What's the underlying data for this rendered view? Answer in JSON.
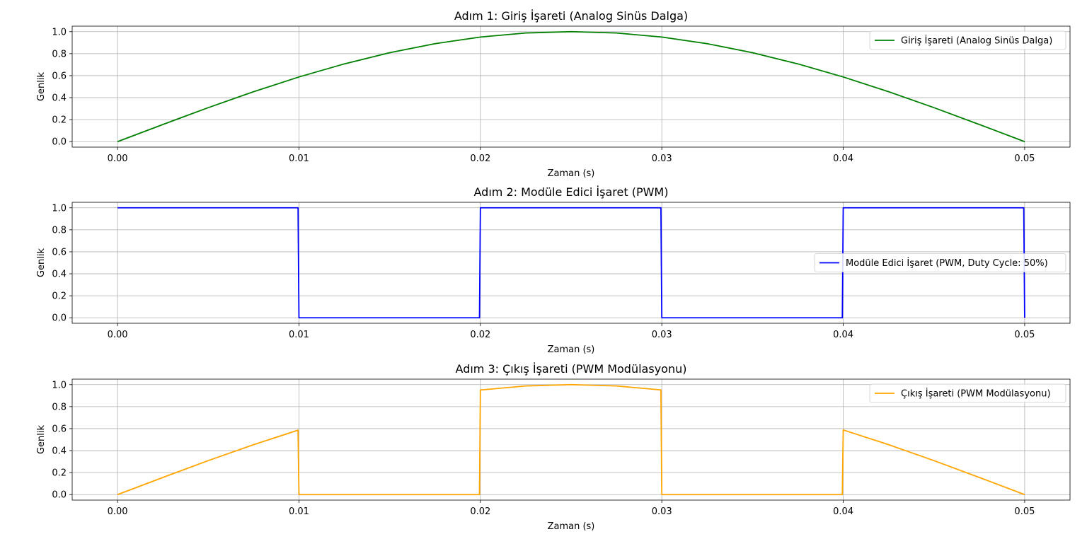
{
  "chart_data": [
    {
      "type": "line",
      "title": "Adım 1: Giriş İşareti (Analog Sinüs Dalga)",
      "xlabel": "Zaman (s)",
      "ylabel": "Genlik",
      "xlim": [
        0,
        0.05
      ],
      "ylim": [
        0,
        1
      ],
      "xticks": [
        "0.00",
        "0.01",
        "0.02",
        "0.03",
        "0.04",
        "0.05"
      ],
      "yticks": [
        "0.0",
        "0.2",
        "0.4",
        "0.6",
        "0.8",
        "1.0"
      ],
      "grid": true,
      "legend_position": "top-right",
      "series": [
        {
          "name": "Giriş İşareti (Analog Sinüs Dalga)",
          "color": "#008000",
          "x": [
            0,
            0.0025,
            0.005,
            0.0075,
            0.01,
            0.0125,
            0.015,
            0.0175,
            0.02,
            0.0225,
            0.025,
            0.0275,
            0.03,
            0.0325,
            0.035,
            0.0375,
            0.04,
            0.0425,
            0.045,
            0.0475,
            0.05
          ],
          "y": [
            0,
            0.156,
            0.309,
            0.454,
            0.588,
            0.707,
            0.809,
            0.891,
            0.951,
            0.988,
            1.0,
            0.988,
            0.951,
            0.891,
            0.809,
            0.707,
            0.588,
            0.454,
            0.309,
            0.156,
            0
          ]
        }
      ]
    },
    {
      "type": "line",
      "title": "Adım 2: Modüle Edici İşaret (PWM)",
      "xlabel": "Zaman (s)",
      "ylabel": "Genlik",
      "xlim": [
        0,
        0.05
      ],
      "ylim": [
        0,
        1
      ],
      "xticks": [
        "0.00",
        "0.01",
        "0.02",
        "0.03",
        "0.04",
        "0.05"
      ],
      "yticks": [
        "0.0",
        "0.2",
        "0.4",
        "0.6",
        "0.8",
        "1.0"
      ],
      "grid": true,
      "legend_position": "center-right",
      "series": [
        {
          "name": "Modüle Edici İşaret (PWM, Duty Cycle: 50%)",
          "color": "#0000ff",
          "x": [
            0,
            0.00995,
            0.01,
            0.01995,
            0.02,
            0.02995,
            0.03,
            0.03995,
            0.04,
            0.04995,
            0.05
          ],
          "y": [
            1,
            1,
            0,
            0,
            1,
            1,
            0,
            0,
            1,
            1,
            0
          ]
        }
      ]
    },
    {
      "type": "line",
      "title": "Adım 3: Çıkış İşareti (PWM Modülasyonu)",
      "xlabel": "Zaman (s)",
      "ylabel": "Genlik",
      "xlim": [
        0,
        0.05
      ],
      "ylim": [
        0,
        1
      ],
      "xticks": [
        "0.00",
        "0.01",
        "0.02",
        "0.03",
        "0.04",
        "0.05"
      ],
      "yticks": [
        "0.0",
        "0.2",
        "0.4",
        "0.6",
        "0.8",
        "1.0"
      ],
      "grid": true,
      "legend_position": "top-right",
      "series": [
        {
          "name": "Çıkış İşareti (PWM Modülasyonu)",
          "color": "#ffa500",
          "x": [
            0,
            0.0025,
            0.005,
            0.0075,
            0.00995,
            0.01,
            0.01995,
            0.02,
            0.0225,
            0.025,
            0.0275,
            0.02995,
            0.03,
            0.03995,
            0.04,
            0.0425,
            0.045,
            0.0475,
            0.05
          ],
          "y": [
            0,
            0.156,
            0.309,
            0.454,
            0.586,
            0,
            0,
            0.951,
            0.988,
            1.0,
            0.988,
            0.952,
            0,
            0,
            0.588,
            0.454,
            0.309,
            0.156,
            0
          ]
        }
      ]
    }
  ]
}
